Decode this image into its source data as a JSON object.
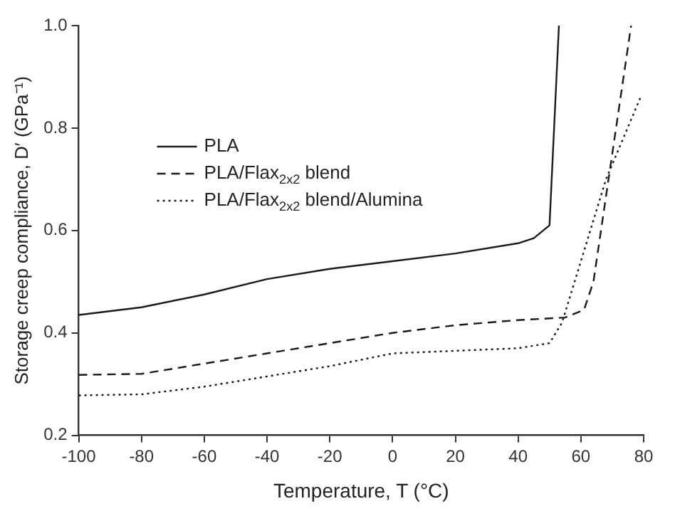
{
  "chart_data": {
    "type": "line",
    "xlabel": "Temperature, T (°C)",
    "ylabel": "Storage creep compliance, D′ (GPa⁻¹)",
    "xlim": [
      -100,
      80
    ],
    "xticks": [
      -100,
      -80,
      -60,
      -40,
      -20,
      0,
      20,
      40,
      60,
      80
    ],
    "ylim": [
      0.2,
      1.0
    ],
    "yticks": [
      0.2,
      0.4,
      0.6,
      0.8,
      {
        "value": 1,
        "label": "1.0"
      }
    ],
    "grid": false,
    "legend": "top left",
    "marker": "none",
    "series": [
      {
        "name": "PLA",
        "color": "#1a1a1a",
        "line_style": "solid",
        "x": [
          -100,
          -80,
          -60,
          -40,
          -20,
          0,
          20,
          40,
          45,
          50,
          53
        ],
        "values": [
          0.435,
          0.45,
          0.475,
          0.505,
          0.525,
          0.54,
          0.555,
          0.575,
          0.585,
          0.61,
          1.0
        ]
      },
      {
        "name": "PLA/Flax$_{2x2}$ blend",
        "color": "#1a1a1a",
        "line_style": "dashed",
        "x": [
          -100,
          -80,
          -60,
          -40,
          -20,
          0,
          20,
          40,
          55,
          61,
          64,
          70,
          76
        ],
        "values": [
          0.318,
          0.32,
          0.34,
          0.36,
          0.38,
          0.4,
          0.415,
          0.425,
          0.43,
          0.445,
          0.5,
          0.75,
          1.0
        ]
      },
      {
        "name": "PLA/Flax$_{2x2}$ blend/Alumina",
        "color": "#1a1a1a",
        "line_style": "dotted",
        "x": [
          -100,
          -80,
          -60,
          -40,
          -20,
          0,
          20,
          40,
          50,
          54,
          57,
          68,
          79
        ],
        "values": [
          0.278,
          0.28,
          0.295,
          0.315,
          0.335,
          0.36,
          0.365,
          0.37,
          0.38,
          0.42,
          0.48,
          0.7,
          0.86
        ]
      }
    ]
  }
}
